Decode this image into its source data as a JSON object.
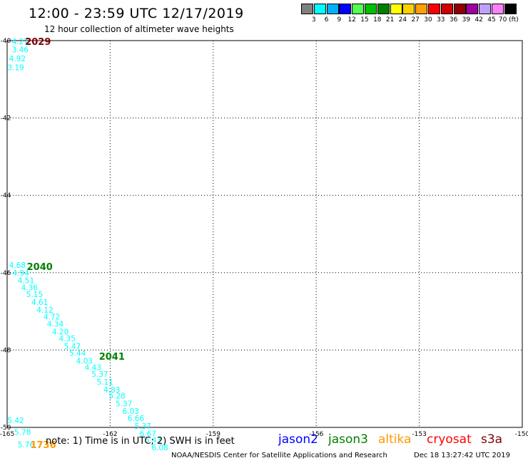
{
  "header": {
    "title": "12:00 - 23:59 UTC 12/17/2019",
    "subtitle": "12 hour collection of altimeter wave heights"
  },
  "color_scale": {
    "colors": [
      "#808080",
      "#00ffff",
      "#00b0ff",
      "#0000ff",
      "#50ff50",
      "#00c000",
      "#008000",
      "#ffff00",
      "#ffd000",
      "#ffa000",
      "#ff0000",
      "#d00000",
      "#900000",
      "#a000a0",
      "#c0a0ff",
      "#ff80ff",
      "#000000"
    ],
    "labels": [
      "3",
      "6",
      "9",
      "12",
      "15",
      "18",
      "21",
      "24",
      "27",
      "30",
      "33",
      "36",
      "39",
      "42",
      "45",
      "70 (ft)"
    ]
  },
  "footer": {
    "note": "note: 1) Time is in UTC; 2) SWH is in feet",
    "satellites": [
      {
        "name": "jason2",
        "color": "#0000ff"
      },
      {
        "name": "jason3",
        "color": "#008000"
      },
      {
        "name": "altika",
        "color": "#ff9900"
      },
      {
        "name": "cryosat",
        "color": "#ff0000"
      },
      {
        "name": "s3a",
        "color": "#800000"
      }
    ],
    "credit": "NOAA/NESDIS Center for Satellite Applications and Research",
    "timestamp": "Dec 18 13:27:42 UTC 2019"
  },
  "chart_data": {
    "type": "scatter",
    "xlim": [
      -165,
      -150
    ],
    "ylim": [
      -50,
      -40
    ],
    "x_ticks": [
      "-165",
      "-162",
      "-159",
      "-156",
      "-153",
      "-150"
    ],
    "y_ticks": [
      "-40",
      "-42",
      "-44",
      "-46",
      "-48",
      "-50"
    ],
    "grid": true,
    "point_color": "#00ffff",
    "points": [
      {
        "x": -164.62,
        "y": -40.02,
        "v": "4.27"
      },
      {
        "x": -164.62,
        "y": -40.23,
        "v": "3.46"
      },
      {
        "x": -164.7,
        "y": -40.46,
        "v": "4.92"
      },
      {
        "x": -164.75,
        "y": -40.69,
        "v": "3.19"
      },
      {
        "x": -164.7,
        "y": -45.8,
        "v": "4.68"
      },
      {
        "x": -164.6,
        "y": -46.0,
        "v": "4.94"
      },
      {
        "x": -164.45,
        "y": -46.2,
        "v": "4.51"
      },
      {
        "x": -164.35,
        "y": -46.38,
        "v": "4.36"
      },
      {
        "x": -164.2,
        "y": -46.56,
        "v": "5.15"
      },
      {
        "x": -164.05,
        "y": -46.76,
        "v": "4.61"
      },
      {
        "x": -163.9,
        "y": -46.96,
        "v": "4.12"
      },
      {
        "x": -163.7,
        "y": -47.14,
        "v": "4.72"
      },
      {
        "x": -163.6,
        "y": -47.32,
        "v": "4.34"
      },
      {
        "x": -163.45,
        "y": -47.52,
        "v": "4.20"
      },
      {
        "x": -163.25,
        "y": -47.7,
        "v": "4.35"
      },
      {
        "x": -163.1,
        "y": -47.9,
        "v": "5.47"
      },
      {
        "x": -162.95,
        "y": -48.08,
        "v": "5.44"
      },
      {
        "x": -162.75,
        "y": -48.28,
        "v": "4.03"
      },
      {
        "x": -162.5,
        "y": -48.44,
        "v": "4.43"
      },
      {
        "x": -162.3,
        "y": -48.62,
        "v": "5.37"
      },
      {
        "x": -162.15,
        "y": -48.82,
        "v": "5.11"
      },
      {
        "x": -161.95,
        "y": -49.02,
        "v": "4.83"
      },
      {
        "x": -161.8,
        "y": -49.18,
        "v": "5.28"
      },
      {
        "x": -161.6,
        "y": -49.38,
        "v": "5.37"
      },
      {
        "x": -161.4,
        "y": -49.58,
        "v": "6.03"
      },
      {
        "x": -161.25,
        "y": -49.76,
        "v": "6.66"
      },
      {
        "x": -161.05,
        "y": -49.96,
        "v": "5.37"
      },
      {
        "x": -160.9,
        "y": -50.16,
        "v": "6.67"
      },
      {
        "x": -160.75,
        "y": -50.32,
        "v": "5.43"
      },
      {
        "x": -160.55,
        "y": -50.52,
        "v": "6.08"
      },
      {
        "x": -164.75,
        "y": -49.82,
        "v": "5.42"
      },
      {
        "x": -164.55,
        "y": -50.12,
        "v": "5.78"
      },
      {
        "x": -164.45,
        "y": -50.44,
        "v": "5.76"
      }
    ],
    "pass_labels": [
      {
        "x": -164.1,
        "y": -40.02,
        "text": "2029",
        "color": "#800000"
      },
      {
        "x": -164.05,
        "y": -45.84,
        "text": "2040",
        "color": "#008000"
      },
      {
        "x": -161.95,
        "y": -48.16,
        "text": "2041",
        "color": "#008000"
      },
      {
        "x": -163.95,
        "y": -50.44,
        "text": "1736",
        "color": "#ff9900"
      }
    ]
  }
}
